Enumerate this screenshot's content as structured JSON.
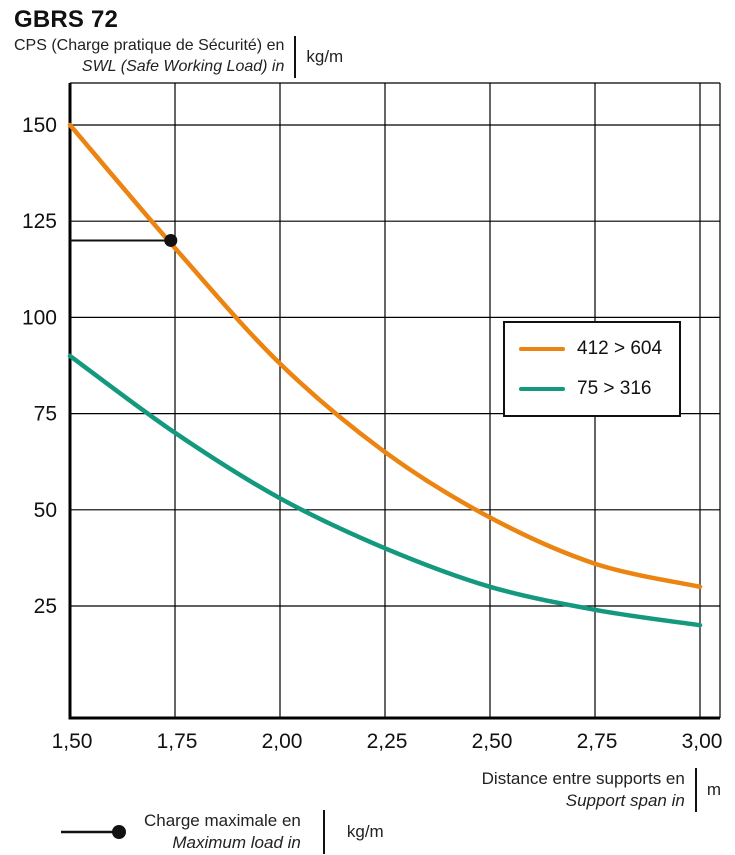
{
  "chart_data": {
    "type": "line",
    "title": "GBRS 72",
    "y_axis_label": {
      "line1": "CPS (Charge pratique de Sécurité) en",
      "line2": "SWL (Safe Working Load) in",
      "unit": "kg/m"
    },
    "x_axis_label": {
      "line1": "Distance entre supports en",
      "line2": "Support span in",
      "unit": "m"
    },
    "marker_legend": {
      "line1": "Charge maximale en",
      "line2": "Maximum load in",
      "unit": "kg/m"
    },
    "x": [
      1.5,
      1.75,
      2.0,
      2.25,
      2.5,
      2.75,
      3.0
    ],
    "series": [
      {
        "name": "412 > 604",
        "color": "#EC8412",
        "values": [
          150,
          118,
          88,
          65,
          48,
          36,
          30
        ]
      },
      {
        "name": "75 > 316",
        "color": "#14997E",
        "values": [
          90,
          70,
          53,
          40,
          30,
          24,
          20
        ]
      }
    ],
    "marker": {
      "x": 1.74,
      "y": 120
    },
    "x_ticks": [
      "1,50",
      "1,75",
      "2,00",
      "2,25",
      "2,50",
      "2,75",
      "3,00"
    ],
    "y_ticks": [
      25,
      50,
      75,
      100,
      125,
      150
    ],
    "xlim": [
      1.5,
      3.0
    ],
    "ylim": [
      0,
      160
    ],
    "grid": true,
    "grid_color": "#000000",
    "legend_position": "right"
  }
}
